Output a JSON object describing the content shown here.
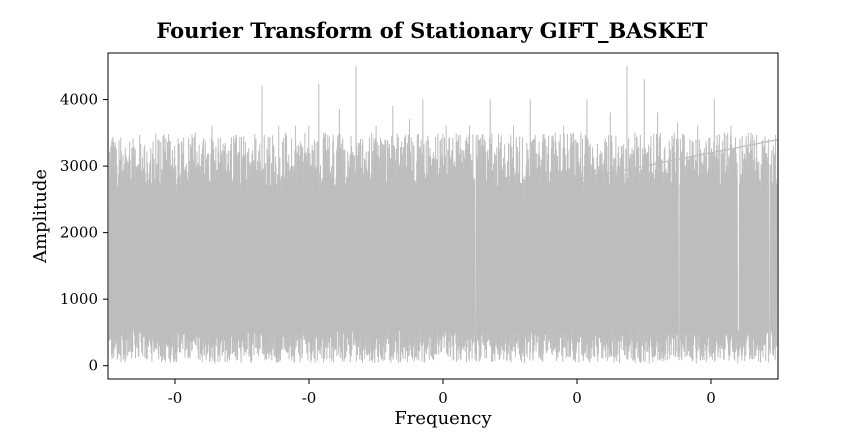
{
  "chart_data": {
    "type": "line",
    "title": "Fourier Transform of Stationary GIFT_BASKET",
    "xlabel": "Frequency",
    "ylabel": "Amplitude",
    "x_tick_labels": [
      "-0",
      "-0",
      "0",
      "0",
      "0"
    ],
    "y_ticks": [
      0,
      1000,
      2000,
      3000,
      4000
    ],
    "ylim": [
      -200,
      4700
    ],
    "xlim": [
      -0.5,
      0.5
    ],
    "grid": false,
    "legend": "none",
    "series": [
      {
        "color": "#bdbdbd",
        "point_count": 2400,
        "amplitude_min": 40,
        "amplitude_max": 4500,
        "amplitude_typical_low": 300,
        "amplitude_typical_high": 3000,
        "peaks": [
          {
            "x": -0.425,
            "y": 3400
          },
          {
            "x": -0.37,
            "y": 3500
          },
          {
            "x": -0.345,
            "y": 3600
          },
          {
            "x": -0.31,
            "y": 3400
          },
          {
            "x": -0.27,
            "y": 4200
          },
          {
            "x": -0.245,
            "y": 3600
          },
          {
            "x": -0.22,
            "y": 3600
          },
          {
            "x": -0.2,
            "y": 3600
          },
          {
            "x": -0.185,
            "y": 4230
          },
          {
            "x": -0.155,
            "y": 3850
          },
          {
            "x": -0.13,
            "y": 4500
          },
          {
            "x": -0.1,
            "y": 3600
          },
          {
            "x": -0.075,
            "y": 3900
          },
          {
            "x": -0.05,
            "y": 3700
          },
          {
            "x": -0.03,
            "y": 4000
          },
          {
            "x": 0.005,
            "y": 3600
          },
          {
            "x": 0.04,
            "y": 3600
          },
          {
            "x": 0.07,
            "y": 4000
          },
          {
            "x": 0.105,
            "y": 3600
          },
          {
            "x": 0.13,
            "y": 4000
          },
          {
            "x": 0.18,
            "y": 3600
          },
          {
            "x": 0.215,
            "y": 4000
          },
          {
            "x": 0.25,
            "y": 3800
          },
          {
            "x": 0.275,
            "y": 4500
          },
          {
            "x": 0.3,
            "y": 4300
          },
          {
            "x": 0.32,
            "y": 3800
          },
          {
            "x": 0.35,
            "y": 3650
          },
          {
            "x": 0.38,
            "y": 3600
          },
          {
            "x": 0.405,
            "y": 4000
          },
          {
            "x": 0.43,
            "y": 3600
          },
          {
            "x": 0.46,
            "y": 3500
          }
        ],
        "wrap_line": [
          {
            "x": 0.2,
            "y": 2800
          },
          {
            "x": 0.5,
            "y": 3400
          }
        ]
      }
    ]
  }
}
